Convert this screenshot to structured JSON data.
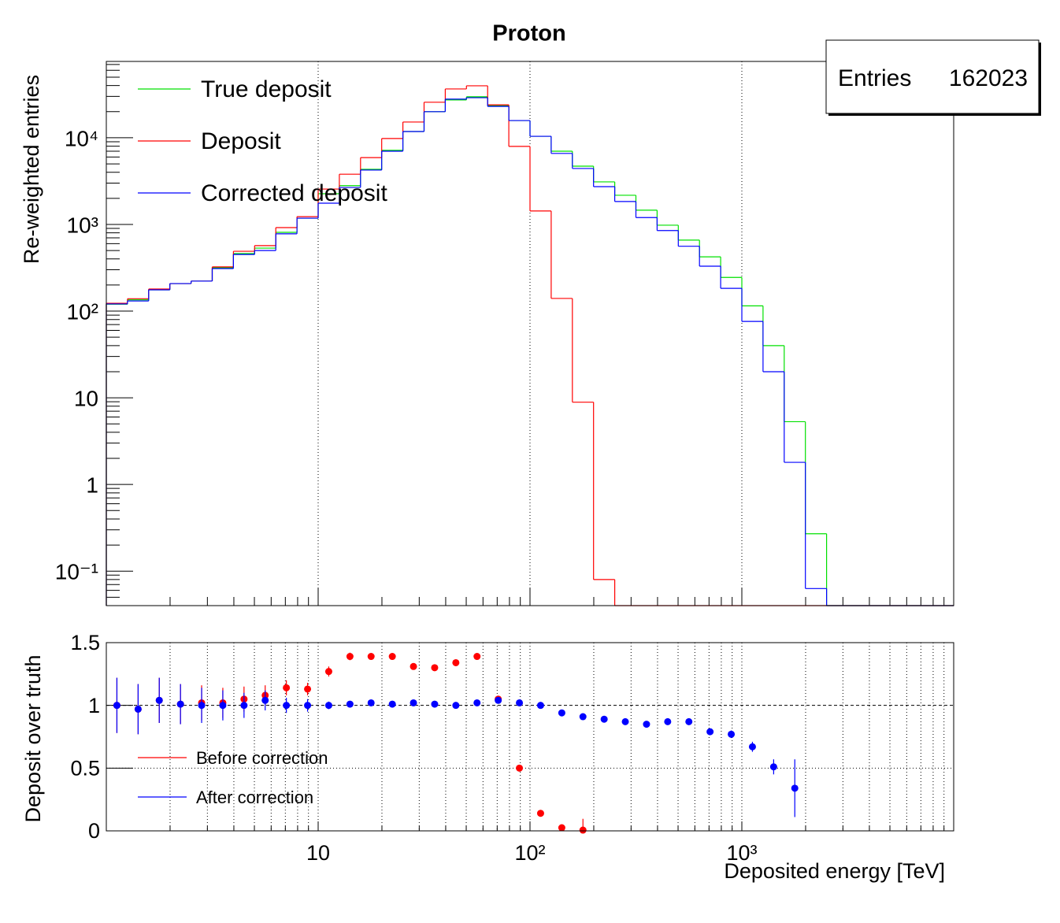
{
  "chart_data": [
    {
      "type": "histogram",
      "title": "Proton",
      "y_label": "Re-weighted entries",
      "log_x": true,
      "log_y": true,
      "xlim": [
        1,
        10000
      ],
      "ylim": [
        0.04,
        76000
      ],
      "yticks": [
        {
          "value": 0.1,
          "label": "10⁻¹"
        },
        1,
        10,
        {
          "value": 100,
          "label": "10²"
        },
        {
          "value": 1000,
          "label": "10³"
        },
        {
          "value": 10000,
          "label": "10⁴"
        }
      ],
      "grid": true,
      "legend": "top-left",
      "stats": {
        "label": "Entries",
        "value": 162023
      },
      "bins": [
        1,
        1.259,
        1.585,
        1.995,
        2.512,
        3.162,
        3.981,
        5.012,
        6.31,
        7.943,
        10,
        12.59,
        15.85,
        19.95,
        25.12,
        31.62,
        39.81,
        50.12,
        63.1,
        79.43,
        100,
        125.9,
        158.5,
        199.5,
        251.2,
        316.2,
        398.1,
        501.2,
        631,
        794.3,
        1000,
        1259,
        1585,
        1995,
        2512,
        3162,
        3981,
        5012,
        6310,
        7943,
        10000
      ],
      "series": [
        {
          "name": "True deposit",
          "color": "#00e000",
          "values": [
            120,
            135,
            176,
            208,
            222,
            316,
            461,
            533,
            811,
            1180,
            2260,
            2800,
            4330,
            7160,
            11800,
            20000,
            27300,
            29700,
            23600,
            15800,
            10400,
            7000,
            4700,
            3100,
            2170,
            1460,
            980,
            660,
            423,
            245,
            115,
            40,
            5.3,
            0.27,
            0,
            0,
            0,
            0,
            0,
            0
          ]
        },
        {
          "name": "Deposit",
          "color": "#ff0000",
          "values": [
            123,
            139,
            180,
            208,
            222,
            324,
            490,
            570,
            920,
            1230,
            2560,
            3800,
            5900,
            9800,
            15200,
            25700,
            36600,
            39800,
            24000,
            7950,
            1430,
            140,
            8.9,
            0.08,
            0,
            0,
            0,
            0,
            0,
            0,
            0,
            0,
            0,
            0,
            0,
            0,
            0,
            0,
            0,
            0
          ]
        },
        {
          "name": "Corrected deposit",
          "color": "#0000ff",
          "values": [
            121,
            131,
            176,
            208,
            222,
            310,
            450,
            500,
            780,
            1180,
            1760,
            2670,
            4240,
            7000,
            11800,
            20000,
            27900,
            29000,
            23000,
            15800,
            10400,
            6600,
            4420,
            2730,
            1840,
            1200,
            850,
            560,
            330,
            183,
            76,
            20,
            1.8,
            0.063,
            0,
            0,
            0,
            0,
            0,
            0
          ]
        }
      ]
    },
    {
      "type": "errorbar",
      "x_label": "Deposited energy [TeV]",
      "y_label": "Deposit over truth",
      "log_x": true,
      "xlim": [
        1,
        10000
      ],
      "ylim": [
        0,
        1.5
      ],
      "xticks": [
        10,
        {
          "value": 100,
          "label": "10²"
        },
        {
          "value": 1000,
          "label": "10³"
        }
      ],
      "yticks": [
        0,
        0.5,
        1,
        1.5
      ],
      "grid": true,
      "legend": "bottom-left",
      "x": [
        1.122,
        1.413,
        1.778,
        2.239,
        2.818,
        3.548,
        4.467,
        5.623,
        7.079,
        8.913,
        11.22,
        14.13,
        17.78,
        22.39,
        28.18,
        35.48,
        44.67,
        56.23,
        70.79,
        89.13,
        112.2,
        141.3,
        177.8,
        223.9,
        281.8,
        354.8,
        446.7,
        562.3,
        707.9,
        891.3,
        1122,
        1413,
        1778
      ],
      "series": [
        {
          "name": "Before correction",
          "color": "#ff0000",
          "values": [
            1.0,
            0.97,
            1.04,
            1.01,
            1.02,
            1.02,
            1.05,
            1.08,
            1.14,
            1.13,
            1.27,
            1.39,
            1.39,
            1.39,
            1.31,
            1.3,
            1.34,
            1.39,
            1.05,
            0.5,
            0.14,
            0.025,
            0.006,
            null,
            null,
            null,
            null,
            null,
            null,
            null,
            null,
            null,
            null
          ],
          "errors": [
            0.22,
            0.2,
            0.18,
            0.16,
            0.14,
            0.12,
            0.1,
            0.08,
            0.06,
            0.05,
            0.04,
            0.03,
            0.02,
            0.02,
            0.02,
            0.02,
            0.02,
            0.02,
            0.02,
            0.02,
            0.02,
            0.02,
            0.09,
            null,
            null,
            null,
            null,
            null,
            null,
            null,
            null,
            null,
            null
          ]
        },
        {
          "name": "After correction",
          "color": "#0000ff",
          "values": [
            1.0,
            0.97,
            1.04,
            1.01,
            1.0,
            1.0,
            1.0,
            1.04,
            1.0,
            1.0,
            1.0,
            1.01,
            1.02,
            1.01,
            1.02,
            1.01,
            1.0,
            1.02,
            1.04,
            1.02,
            1.0,
            0.94,
            0.91,
            0.89,
            0.87,
            0.85,
            0.87,
            0.87,
            0.79,
            0.77,
            0.67,
            0.51,
            0.34
          ],
          "errors": [
            0.22,
            0.2,
            0.18,
            0.16,
            0.14,
            0.12,
            0.1,
            0.08,
            0.06,
            0.05,
            0.03,
            0.02,
            0.02,
            0.02,
            0.02,
            0.02,
            0.02,
            0.02,
            0.02,
            0.02,
            0.02,
            0.02,
            0.02,
            0.02,
            0.02,
            0.02,
            0.02,
            0.02,
            0.02,
            0.03,
            0.04,
            0.06,
            0.23
          ]
        }
      ]
    }
  ]
}
